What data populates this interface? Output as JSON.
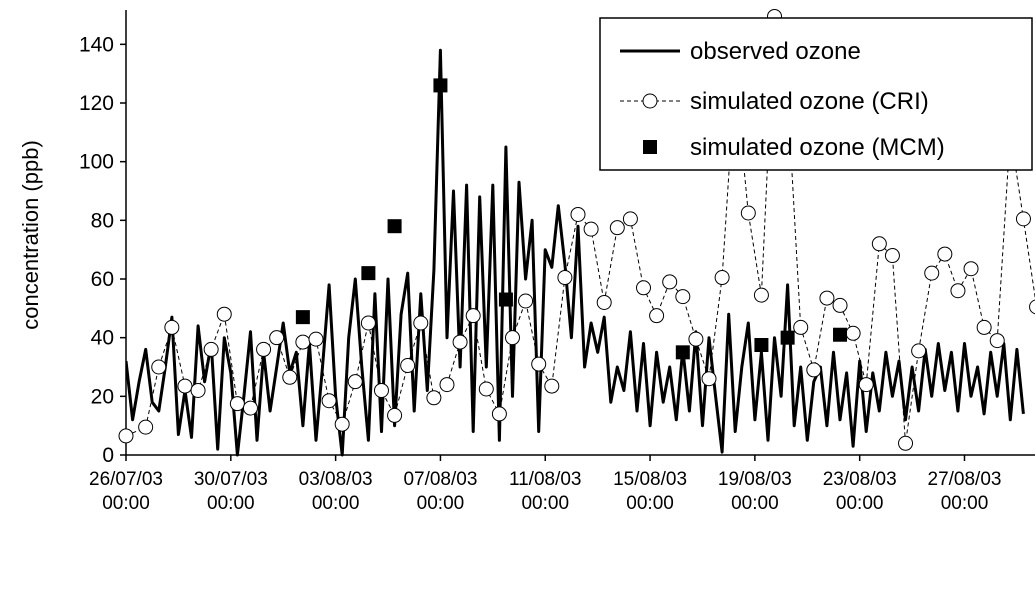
{
  "chart_data": {
    "type": "line",
    "title": "",
    "xlabel": "",
    "ylabel": "concentration (ppb)",
    "ylim": [
      0,
      150
    ],
    "xlim": [
      "26/07/03 00:00",
      "29/08/03 12:00"
    ],
    "y_ticks": [
      0,
      20,
      40,
      60,
      80,
      100,
      120,
      140
    ],
    "x_tick_labels": [
      [
        "26/07/03",
        "00:00"
      ],
      [
        "30/07/03",
        "00:00"
      ],
      [
        "03/08/03",
        "00:00"
      ],
      [
        "07/08/03",
        "00:00"
      ],
      [
        "11/08/03",
        "00:00"
      ],
      [
        "15/08/03",
        "00:00"
      ],
      [
        "19/08/03",
        "00:00"
      ],
      [
        "23/08/03",
        "00:00"
      ],
      [
        "27/08/03",
        "00:00"
      ]
    ],
    "grid": false,
    "legend_position": "top-right",
    "series": [
      {
        "name": "observed ozone",
        "style": "solid-line",
        "color": "#000000",
        "points": [
          [
            "26/07/03 00:00",
            32
          ],
          [
            "26/07/03 06:00",
            12
          ],
          [
            "26/07/03 12:00",
            25
          ],
          [
            "26/07/03 18:00",
            36
          ],
          [
            "27/07/03 00:00",
            18
          ],
          [
            "27/07/03 06:00",
            15
          ],
          [
            "27/07/03 12:00",
            30
          ],
          [
            "27/07/03 18:00",
            47
          ],
          [
            "28/07/03 00:00",
            7
          ],
          [
            "28/07/03 06:00",
            22
          ],
          [
            "28/07/03 12:00",
            6
          ],
          [
            "28/07/03 18:00",
            44
          ],
          [
            "29/07/03 00:00",
            25
          ],
          [
            "29/07/03 06:00",
            38
          ],
          [
            "29/07/03 12:00",
            2
          ],
          [
            "29/07/03 18:00",
            40
          ],
          [
            "30/07/03 00:00",
            28
          ],
          [
            "30/07/03 06:00",
            0
          ],
          [
            "30/07/03 12:00",
            20
          ],
          [
            "30/07/03 18:00",
            42
          ],
          [
            "31/07/03 00:00",
            5
          ],
          [
            "31/07/03 06:00",
            35
          ],
          [
            "31/07/03 12:00",
            15
          ],
          [
            "31/07/03 18:00",
            30
          ],
          [
            "01/08/03 00:00",
            45
          ],
          [
            "01/08/03 06:00",
            28
          ],
          [
            "01/08/03 12:00",
            35
          ],
          [
            "01/08/03 18:00",
            10
          ],
          [
            "02/08/03 00:00",
            38
          ],
          [
            "02/08/03 06:00",
            5
          ],
          [
            "02/08/03 12:00",
            30
          ],
          [
            "02/08/03 18:00",
            58
          ],
          [
            "03/08/03 00:00",
            20
          ],
          [
            "03/08/03 06:00",
            0
          ],
          [
            "03/08/03 12:00",
            40
          ],
          [
            "03/08/03 18:00",
            60
          ],
          [
            "04/08/03 00:00",
            30
          ],
          [
            "04/08/03 06:00",
            5
          ],
          [
            "04/08/03 12:00",
            55
          ],
          [
            "04/08/03 18:00",
            8
          ],
          [
            "05/08/03 00:00",
            60
          ],
          [
            "05/08/03 06:00",
            10
          ],
          [
            "05/08/03 12:00",
            48
          ],
          [
            "05/08/03 18:00",
            62
          ],
          [
            "06/08/03 00:00",
            15
          ],
          [
            "06/08/03 06:00",
            55
          ],
          [
            "06/08/03 12:00",
            22
          ],
          [
            "06/08/03 18:00",
            63
          ],
          [
            "07/08/03 00:00",
            138
          ],
          [
            "07/08/03 06:00",
            40
          ],
          [
            "07/08/03 12:00",
            90
          ],
          [
            "07/08/03 18:00",
            30
          ],
          [
            "08/08/03 00:00",
            92
          ],
          [
            "08/08/03 06:00",
            8
          ],
          [
            "08/08/03 12:00",
            88
          ],
          [
            "08/08/03 18:00",
            30
          ],
          [
            "09/08/03 00:00",
            92
          ],
          [
            "09/08/03 06:00",
            5
          ],
          [
            "09/08/03 12:00",
            105
          ],
          [
            "09/08/03 18:00",
            20
          ],
          [
            "10/08/03 00:00",
            93
          ],
          [
            "10/08/03 06:00",
            60
          ],
          [
            "10/08/03 12:00",
            80
          ],
          [
            "10/08/03 18:00",
            8
          ],
          [
            "11/08/03 00:00",
            70
          ],
          [
            "11/08/03 06:00",
            64
          ],
          [
            "11/08/03 12:00",
            85
          ],
          [
            "11/08/03 18:00",
            65
          ],
          [
            "12/08/03 00:00",
            40
          ],
          [
            "12/08/03 06:00",
            78
          ],
          [
            "12/08/03 12:00",
            30
          ],
          [
            "12/08/03 18:00",
            45
          ],
          [
            "13/08/03 00:00",
            35
          ],
          [
            "13/08/03 06:00",
            47
          ],
          [
            "13/08/03 12:00",
            18
          ],
          [
            "13/08/03 18:00",
            30
          ],
          [
            "14/08/03 00:00",
            22
          ],
          [
            "14/08/03 06:00",
            42
          ],
          [
            "14/08/03 12:00",
            15
          ],
          [
            "14/08/03 18:00",
            38
          ],
          [
            "15/08/03 00:00",
            10
          ],
          [
            "15/08/03 06:00",
            35
          ],
          [
            "15/08/03 12:00",
            18
          ],
          [
            "15/08/03 18:00",
            30
          ],
          [
            "16/08/03 00:00",
            12
          ],
          [
            "16/08/03 06:00",
            36
          ],
          [
            "16/08/03 12:00",
            15
          ],
          [
            "16/08/03 18:00",
            42
          ],
          [
            "17/08/03 00:00",
            10
          ],
          [
            "17/08/03 06:00",
            40
          ],
          [
            "17/08/03 12:00",
            20
          ],
          [
            "17/08/03 18:00",
            1
          ],
          [
            "18/08/03 00:00",
            48
          ],
          [
            "18/08/03 06:00",
            8
          ],
          [
            "18/08/03 12:00",
            30
          ],
          [
            "18/08/03 18:00",
            45
          ],
          [
            "19/08/03 00:00",
            12
          ],
          [
            "19/08/03 06:00",
            35
          ],
          [
            "19/08/03 12:00",
            5
          ],
          [
            "19/08/03 18:00",
            40
          ],
          [
            "20/08/03 00:00",
            20
          ],
          [
            "20/08/03 06:00",
            58
          ],
          [
            "20/08/03 12:00",
            10
          ],
          [
            "20/08/03 18:00",
            30
          ],
          [
            "21/08/03 00:00",
            5
          ],
          [
            "21/08/03 06:00",
            25
          ],
          [
            "21/08/03 12:00",
            30
          ],
          [
            "21/08/03 18:00",
            10
          ],
          [
            "22/08/03 00:00",
            35
          ],
          [
            "22/08/03 06:00",
            12
          ],
          [
            "22/08/03 12:00",
            28
          ],
          [
            "22/08/03 18:00",
            3
          ],
          [
            "23/08/03 00:00",
            32
          ],
          [
            "23/08/03 06:00",
            8
          ],
          [
            "23/08/03 12:00",
            28
          ],
          [
            "23/08/03 18:00",
            15
          ],
          [
            "24/08/03 00:00",
            35
          ],
          [
            "24/08/03 06:00",
            20
          ],
          [
            "24/08/03 12:00",
            32
          ],
          [
            "24/08/03 18:00",
            12
          ],
          [
            "25/08/03 00:00",
            30
          ],
          [
            "25/08/03 06:00",
            15
          ],
          [
            "25/08/03 12:00",
            36
          ],
          [
            "25/08/03 18:00",
            20
          ],
          [
            "26/08/03 00:00",
            38
          ],
          [
            "26/08/03 06:00",
            22
          ],
          [
            "26/08/03 12:00",
            35
          ],
          [
            "26/08/03 18:00",
            15
          ],
          [
            "27/08/03 00:00",
            38
          ],
          [
            "27/08/03 06:00",
            20
          ],
          [
            "27/08/03 12:00",
            30
          ],
          [
            "27/08/03 18:00",
            14
          ],
          [
            "28/08/03 00:00",
            35
          ],
          [
            "28/08/03 06:00",
            20
          ],
          [
            "28/08/03 12:00",
            38
          ],
          [
            "28/08/03 18:00",
            12
          ],
          [
            "29/08/03 00:00",
            36
          ],
          [
            "29/08/03 06:00",
            14
          ]
        ]
      },
      {
        "name": "simulated ozone (CRI)",
        "style": "dashed-line-open-circle",
        "color": "#000000",
        "points": [
          [
            "26/07/03 00:00",
            6.5
          ],
          [
            "26/07/03 18:00",
            9.5
          ],
          [
            "27/07/03 06:00",
            30
          ],
          [
            "27/07/03 18:00",
            43.5
          ],
          [
            "28/07/03 06:00",
            23.5
          ],
          [
            "28/07/03 18:00",
            22
          ],
          [
            "29/07/03 06:00",
            36
          ],
          [
            "29/07/03 18:00",
            48
          ],
          [
            "30/07/03 06:00",
            17.5
          ],
          [
            "30/07/03 18:00",
            16
          ],
          [
            "31/07/03 06:00",
            36
          ],
          [
            "31/07/03 18:00",
            40
          ],
          [
            "01/08/03 06:00",
            26.5
          ],
          [
            "01/08/03 18:00",
            38.5
          ],
          [
            "02/08/03 06:00",
            39.5
          ],
          [
            "02/08/03 18:00",
            18.5
          ],
          [
            "03/08/03 06:00",
            10.5
          ],
          [
            "03/08/03 18:00",
            25
          ],
          [
            "04/08/03 06:00",
            45
          ],
          [
            "04/08/03 18:00",
            22
          ],
          [
            "05/08/03 06:00",
            13.5
          ],
          [
            "05/08/03 18:00",
            30.5
          ],
          [
            "06/08/03 06:00",
            45
          ],
          [
            "06/08/03 18:00",
            19.5
          ],
          [
            "07/08/03 06:00",
            24
          ],
          [
            "07/08/03 18:00",
            38.5
          ],
          [
            "08/08/03 06:00",
            47.5
          ],
          [
            "08/08/03 18:00",
            22.5
          ],
          [
            "09/08/03 06:00",
            14
          ],
          [
            "09/08/03 18:00",
            40
          ],
          [
            "10/08/03 06:00",
            52.5
          ],
          [
            "10/08/03 18:00",
            31
          ],
          [
            "11/08/03 06:00",
            23.5
          ],
          [
            "11/08/03 18:00",
            60.5
          ],
          [
            "12/08/03 06:00",
            82
          ],
          [
            "12/08/03 18:00",
            77
          ],
          [
            "13/08/03 06:00",
            52
          ],
          [
            "13/08/03 18:00",
            77.5
          ],
          [
            "14/08/03 06:00",
            80.5
          ],
          [
            "14/08/03 18:00",
            57
          ],
          [
            "15/08/03 06:00",
            47.5
          ],
          [
            "15/08/03 18:00",
            59
          ],
          [
            "16/08/03 06:00",
            54
          ],
          [
            "16/08/03 18:00",
            39.5
          ],
          [
            "17/08/03 06:00",
            26
          ],
          [
            "17/08/03 18:00",
            60.5
          ],
          [
            "18/08/03 06:00",
            129
          ],
          [
            "18/08/03 18:00",
            82.5
          ],
          [
            "19/08/03 06:00",
            54.5
          ],
          [
            "19/08/03 18:00",
            149.5
          ],
          [
            "20/08/03 06:00",
            123
          ],
          [
            "20/08/03 18:00",
            43.5
          ],
          [
            "21/08/03 06:00",
            29
          ],
          [
            "21/08/03 18:00",
            53.5
          ],
          [
            "22/08/03 06:00",
            51
          ],
          [
            "22/08/03 18:00",
            41.5
          ],
          [
            "23/08/03 06:00",
            24
          ],
          [
            "23/08/03 18:00",
            72
          ],
          [
            "24/08/03 06:00",
            68
          ],
          [
            "24/08/03 18:00",
            4
          ],
          [
            "25/08/03 06:00",
            35.5
          ],
          [
            "25/08/03 18:00",
            62
          ],
          [
            "26/08/03 06:00",
            68.5
          ],
          [
            "26/08/03 18:00",
            56
          ],
          [
            "27/08/03 06:00",
            63.5
          ],
          [
            "27/08/03 18:00",
            43.5
          ],
          [
            "28/08/03 06:00",
            39
          ],
          [
            "28/08/03 18:00",
            110
          ],
          [
            "29/08/03 06:00",
            80.5
          ],
          [
            "29/08/03 18:00",
            50.5
          ]
        ]
      },
      {
        "name": "simulated ozone (MCM)",
        "style": "filled-square",
        "color": "#000000",
        "points": [
          [
            "01/08/03 18:00",
            47
          ],
          [
            "04/08/03 06:00",
            62
          ],
          [
            "05/08/03 06:00",
            78
          ],
          [
            "07/08/03 00:00",
            126
          ],
          [
            "09/08/03 12:00",
            53
          ],
          [
            "16/08/03 06:00",
            35
          ],
          [
            "19/08/03 06:00",
            37.5
          ],
          [
            "20/08/03 06:00",
            40
          ],
          [
            "22/08/03 06:00",
            41
          ]
        ]
      }
    ]
  }
}
